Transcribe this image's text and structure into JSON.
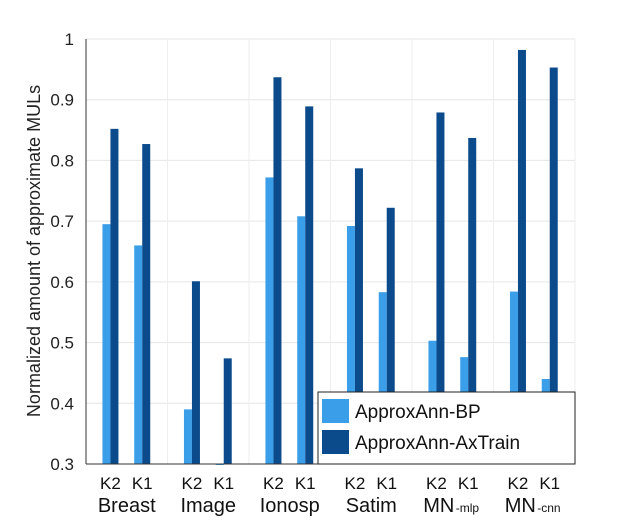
{
  "chart_data": {
    "type": "bar",
    "ylabel": "Normalized amount of approximate MULs",
    "ylim": [
      0.3,
      1.0
    ],
    "yticks": [
      "0.3",
      "0.4",
      "0.5",
      "0.6",
      "0.7",
      "0.8",
      "0.9",
      "1"
    ],
    "grid": true,
    "legend_position": "bottom-right",
    "colors": {
      "bp": "#3a9ee8",
      "axtrain": "#0b4a8b"
    },
    "groups": [
      {
        "label": "Breast",
        "sub": "",
        "k_labels": [
          "K2",
          "K1"
        ]
      },
      {
        "label": "Image",
        "sub": "",
        "k_labels": [
          "K2",
          "K1"
        ]
      },
      {
        "label": "Ionosp",
        "sub": "",
        "k_labels": [
          "K2",
          "K1"
        ]
      },
      {
        "label": "Satim",
        "sub": "",
        "k_labels": [
          "K2",
          "K1"
        ]
      },
      {
        "label": "MN",
        "sub": "-mlp",
        "k_labels": [
          "K2",
          "K1"
        ]
      },
      {
        "label": "MN",
        "sub": "-cnn",
        "k_labels": [
          "K2",
          "K1"
        ]
      }
    ],
    "series": [
      {
        "name": "ApproxAnn-BP",
        "values": [
          [
            0.695,
            0.66
          ],
          [
            0.39,
            0.3
          ],
          [
            0.772,
            0.708
          ],
          [
            0.692,
            0.583
          ],
          [
            0.503,
            0.476
          ],
          [
            0.584,
            0.44
          ]
        ]
      },
      {
        "name": "ApproxAnn-AxTrain",
        "values": [
          [
            0.852,
            0.827
          ],
          [
            0.601,
            0.474
          ],
          [
            0.937,
            0.889
          ],
          [
            0.787,
            0.722
          ],
          [
            0.879,
            0.837
          ],
          [
            0.982,
            0.953
          ]
        ]
      }
    ]
  }
}
